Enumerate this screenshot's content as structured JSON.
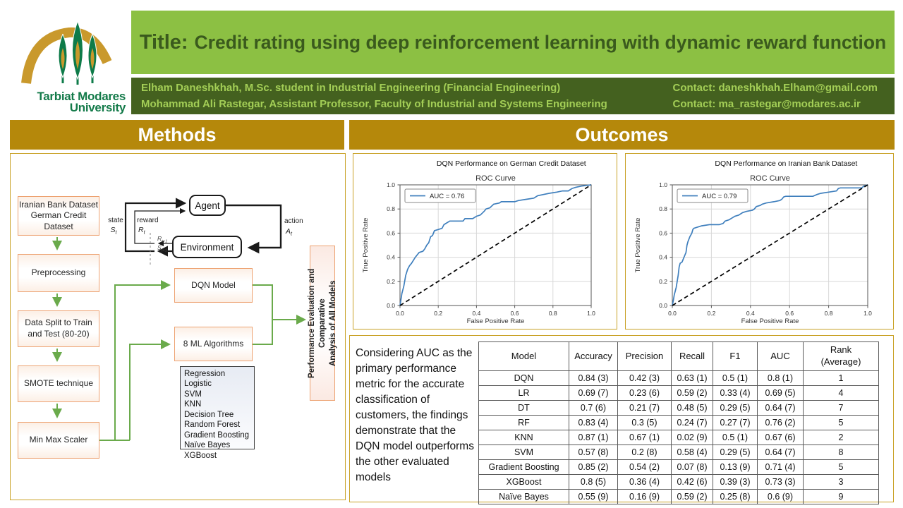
{
  "colors": {
    "banner_green": "#8CC043",
    "title_text_green": "#3A5A1D",
    "bar_dark_green": "#44611F",
    "bar_light_green_text": "#A3CE56",
    "gold_header": "#B5880B",
    "panel_border_gold": "#C9A227",
    "flow_box_border_orange": "#EDA271",
    "flow_arrow_green": "#6aaa4b",
    "roc_curve_blue": "#3f7fbd",
    "logo_green": "#137A49",
    "logo_gold": "#C9992C"
  },
  "logo": {
    "line1": "Tarbiat Modares",
    "line2": "University"
  },
  "header": {
    "title_prefix": "Title:",
    "title": "Credit rating using deep reinforcement learning with dynamic reward function",
    "authors": [
      {
        "text": "Elham Daneshkhah, M.Sc. student in Industrial Engineering (Financial Engineering)",
        "contact": "Contact: daneshkhah.Elham@gmail.com"
      },
      {
        "text": "Mohammad Ali Rastegar, Assistant Professor, Faculty of Industrial and Systems Engineering",
        "contact": "Contact: ma_rastegar@modares.ac.ir"
      }
    ]
  },
  "methods": {
    "header": "Methods",
    "pipeline": [
      "Iranian Bank Dataset\nGerman Credit\nDataset",
      "Preprocessing",
      "Data Split to Train\nand Test (80-20)",
      "SMOTE technique",
      "Min Max Scaler"
    ],
    "rl": {
      "agent": "Agent",
      "environment": "Environment",
      "state": "state",
      "reward": "reward",
      "action": "action",
      "state_sym": {
        "base": "S",
        "sub": "t"
      },
      "reward_sym": {
        "base": "R",
        "sub": "t"
      },
      "action_sym": {
        "base": "A",
        "sub": "t"
      },
      "r_next": {
        "base": "R",
        "sub": "t+1"
      },
      "s_next": {
        "base": "S",
        "sub": "t+1"
      }
    },
    "dqn_box": "DQN Model",
    "ml_box": "8 ML Algorithms",
    "algorithms": [
      "Regression Logistic",
      "SVM",
      "KNN",
      "Decision Tree",
      "Random Forest",
      "Gradient Boosting",
      "Naïve Bayes",
      "XGBoost"
    ],
    "perf_box": "Performance Evaluation and Comparative\nAnalysis of All Models"
  },
  "outcomes": {
    "header": "Outcomes",
    "note": "Considering AUC as the primary performance metric for the accurate classification of customers, the findings demonstrate that the DQN model outperforms the other evaluated models",
    "table": {
      "headers": [
        "Model",
        "Accuracy",
        "Precision",
        "Recall",
        "F1",
        "AUC",
        "Rank\n(Average)"
      ],
      "rows": [
        [
          "DQN",
          "0.84 (3)",
          "0.42 (3)",
          "0.63 (1)",
          "0.5 (1)",
          "0.8 (1)",
          "1"
        ],
        [
          "LR",
          "0.69 (7)",
          "0.23 (6)",
          "0.59 (2)",
          "0.33 (4)",
          "0.69 (5)",
          "4"
        ],
        [
          "DT",
          "0.7 (6)",
          "0.21 (7)",
          "0.48 (5)",
          "0.29 (5)",
          "0.64 (7)",
          "7"
        ],
        [
          "RF",
          "0.83 (4)",
          "0.3 (5)",
          "0.24 (7)",
          "0.27 (7)",
          "0.76 (2)",
          "5"
        ],
        [
          "KNN",
          "0.87 (1)",
          "0.67 (1)",
          "0.02 (9)",
          "0.5 (1)",
          "0.67 (6)",
          "2"
        ],
        [
          "SVM",
          "0.57 (8)",
          "0.2 (8)",
          "0.58 (4)",
          "0.29 (5)",
          "0.64 (7)",
          "8"
        ],
        [
          "Gradient Boosting",
          "0.85 (2)",
          "0.54 (2)",
          "0.07 (8)",
          "0.13 (9)",
          "0.71 (4)",
          "5"
        ],
        [
          "XGBoost",
          "0.8 (5)",
          "0.36 (4)",
          "0.42 (6)",
          "0.39 (3)",
          "0.73 (3)",
          "3"
        ],
        [
          "Naïve Bayes",
          "0.55 (9)",
          "0.16 (9)",
          "0.59 (2)",
          "0.25 (8)",
          "0.6 (9)",
          "9"
        ]
      ]
    }
  },
  "chart_data": [
    {
      "type": "line",
      "title": "DQN Performance on German Credit Dataset",
      "subtitle": "ROC Curve",
      "xlabel": "False Positive Rate",
      "ylabel": "True Positive Rate",
      "xlim": [
        0,
        1
      ],
      "ylim": [
        0,
        1
      ],
      "xticks": [
        0.0,
        0.2,
        0.4,
        0.6,
        0.8,
        1.0
      ],
      "yticks": [
        0.0,
        0.2,
        0.4,
        0.6,
        0.8,
        1.0
      ],
      "grid": true,
      "legend": {
        "position": "upper-left",
        "label": "AUC = 0.76"
      },
      "auc": 0.76,
      "series": [
        {
          "name": "ROC curve",
          "color": "#3f7fbd",
          "dashed": false,
          "x": [
            0,
            0.005,
            0.01,
            0.02,
            0.03,
            0.04,
            0.05,
            0.06,
            0.08,
            0.1,
            0.12,
            0.13,
            0.14,
            0.15,
            0.16,
            0.17,
            0.18,
            0.2,
            0.22,
            0.23,
            0.25,
            0.26,
            0.33,
            0.34,
            0.38,
            0.4,
            0.42,
            0.44,
            0.45,
            0.47,
            0.49,
            0.52,
            0.53,
            0.6,
            0.62,
            0.66,
            0.7,
            0.72,
            0.75,
            0.78,
            0.82,
            0.85,
            0.88,
            0.9,
            0.92,
            0.95,
            1.0
          ],
          "y": [
            0,
            0.05,
            0.1,
            0.16,
            0.25,
            0.3,
            0.33,
            0.35,
            0.4,
            0.44,
            0.45,
            0.47,
            0.5,
            0.52,
            0.57,
            0.58,
            0.62,
            0.63,
            0.64,
            0.67,
            0.69,
            0.7,
            0.7,
            0.72,
            0.72,
            0.74,
            0.75,
            0.78,
            0.8,
            0.81,
            0.84,
            0.85,
            0.86,
            0.86,
            0.87,
            0.88,
            0.89,
            0.91,
            0.92,
            0.93,
            0.94,
            0.95,
            0.95,
            0.97,
            0.98,
            0.99,
            1.0
          ]
        },
        {
          "name": "chance diagonal",
          "color": "#000000",
          "dashed": true,
          "x": [
            0,
            1
          ],
          "y": [
            0,
            1
          ]
        }
      ]
    },
    {
      "type": "line",
      "title": "DQN Performance on Iranian Bank Dataset",
      "subtitle": "ROC Curve",
      "xlabel": "False Positive Rate",
      "ylabel": "True Positive Rate",
      "xlim": [
        0,
        1
      ],
      "ylim": [
        0,
        1
      ],
      "xticks": [
        0.0,
        0.2,
        0.4,
        0.6,
        0.8,
        1.0
      ],
      "yticks": [
        0.0,
        0.2,
        0.4,
        0.6,
        0.8,
        1.0
      ],
      "grid": true,
      "legend": {
        "position": "upper-left",
        "label": "AUC = 0.79"
      },
      "auc": 0.79,
      "series": [
        {
          "name": "ROC curve",
          "color": "#3f7fbd",
          "dashed": false,
          "x": [
            0,
            0.005,
            0.01,
            0.015,
            0.02,
            0.025,
            0.03,
            0.035,
            0.04,
            0.05,
            0.055,
            0.06,
            0.07,
            0.075,
            0.08,
            0.09,
            0.1,
            0.105,
            0.11,
            0.13,
            0.15,
            0.19,
            0.24,
            0.26,
            0.27,
            0.29,
            0.31,
            0.32,
            0.34,
            0.36,
            0.38,
            0.41,
            0.42,
            0.43,
            0.45,
            0.46,
            0.48,
            0.52,
            0.55,
            0.56,
            0.57,
            0.58,
            0.72,
            0.74,
            0.76,
            0.8,
            0.84,
            0.85,
            0.86,
            0.97,
            0.98,
            1.0
          ],
          "y": [
            0,
            0.04,
            0.09,
            0.12,
            0.15,
            0.2,
            0.25,
            0.32,
            0.35,
            0.36,
            0.38,
            0.4,
            0.44,
            0.5,
            0.53,
            0.57,
            0.6,
            0.63,
            0.64,
            0.65,
            0.66,
            0.67,
            0.67,
            0.68,
            0.7,
            0.71,
            0.73,
            0.74,
            0.75,
            0.77,
            0.78,
            0.79,
            0.8,
            0.82,
            0.83,
            0.84,
            0.85,
            0.86,
            0.87,
            0.88,
            0.9,
            0.905,
            0.905,
            0.92,
            0.93,
            0.94,
            0.95,
            0.97,
            0.975,
            0.975,
            0.99,
            1.0
          ]
        },
        {
          "name": "chance diagonal",
          "color": "#000000",
          "dashed": true,
          "x": [
            0,
            1
          ],
          "y": [
            0,
            1
          ]
        }
      ]
    }
  ]
}
